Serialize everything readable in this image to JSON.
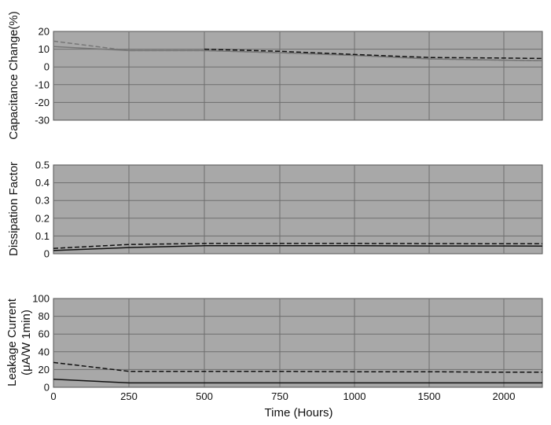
{
  "colors": {
    "plot_bg": "#a8a8a8",
    "grid": "#6e6e6e",
    "frame": "#555555",
    "dark_line": "#111111",
    "gray_line": "#777777"
  },
  "chart_data": [
    {
      "type": "line",
      "ylabel": "Capacitance Change(%)",
      "xlabel": "",
      "ylim": [
        -30,
        20
      ],
      "yticks": [
        20,
        10,
        0,
        -10,
        -20,
        -30
      ],
      "x_categories": [
        "0",
        "250",
        "500",
        "750",
        "1000",
        "1500",
        "2000"
      ],
      "grid": true,
      "series": [
        {
          "style": "dashed",
          "color": "gray_line",
          "points": [
            [
              0,
              14.5
            ],
            [
              250,
              9.2
            ],
            [
              500,
              9.2
            ],
            [
              750,
              8.0
            ],
            [
              1000,
              6.5
            ],
            [
              1500,
              4.5
            ],
            [
              2000,
              3.8
            ],
            [
              2300,
              3.5
            ]
          ]
        },
        {
          "style": "solid",
          "color": "gray_line",
          "points": [
            [
              0,
              11.5
            ],
            [
              250,
              9.2
            ],
            [
              500,
              9.2
            ],
            [
              750,
              8.0
            ],
            [
              1000,
              6.5
            ],
            [
              1500,
              4.5
            ],
            [
              2000,
              3.8
            ],
            [
              2300,
              3.5
            ]
          ]
        },
        {
          "style": "dashed",
          "color": "dark_line",
          "points": [
            [
              500,
              10.0
            ],
            [
              750,
              8.8
            ],
            [
              1000,
              7.0
            ],
            [
              1500,
              5.3
            ],
            [
              2000,
              5.0
            ],
            [
              2300,
              4.8
            ]
          ]
        }
      ]
    },
    {
      "type": "line",
      "ylabel": "Dissipation Factor",
      "xlabel": "",
      "ylim": [
        0,
        0.5
      ],
      "yticks": [
        "0.5",
        "0.4",
        "0.3",
        "0.2",
        "0.1",
        "0"
      ],
      "x_categories": [
        "0",
        "250",
        "500",
        "750",
        "1000",
        "1500",
        "2000"
      ],
      "grid": true,
      "series": [
        {
          "style": "dashed",
          "color": "dark_line",
          "points": [
            [
              0,
              0.03
            ],
            [
              250,
              0.052
            ],
            [
              500,
              0.058
            ],
            [
              750,
              0.058
            ],
            [
              1000,
              0.058
            ],
            [
              1500,
              0.057
            ],
            [
              2000,
              0.056
            ],
            [
              2300,
              0.056
            ]
          ]
        },
        {
          "style": "solid",
          "color": "dark_line",
          "points": [
            [
              0,
              0.018
            ],
            [
              250,
              0.035
            ],
            [
              500,
              0.045
            ],
            [
              750,
              0.045
            ],
            [
              1000,
              0.045
            ],
            [
              1500,
              0.044
            ],
            [
              2000,
              0.044
            ],
            [
              2300,
              0.043
            ]
          ]
        }
      ]
    },
    {
      "type": "line",
      "ylabel": "Leakage Current",
      "ylabel2": "(μA/W 1min)",
      "xlabel": "Time (Hours)",
      "ylim": [
        0,
        100
      ],
      "yticks": [
        100,
        80,
        60,
        40,
        20,
        0
      ],
      "x_categories": [
        "0",
        "250",
        "500",
        "750",
        "1000",
        "1500",
        "2000"
      ],
      "grid": true,
      "series": [
        {
          "style": "dashed",
          "color": "dark_line",
          "points": [
            [
              0,
              28
            ],
            [
              250,
              18
            ],
            [
              500,
              18
            ],
            [
              750,
              18
            ],
            [
              1000,
              17.5
            ],
            [
              1500,
              17.5
            ],
            [
              2000,
              17
            ],
            [
              2300,
              17
            ]
          ]
        },
        {
          "style": "solid",
          "color": "dark_line",
          "points": [
            [
              0,
              9
            ],
            [
              250,
              5
            ],
            [
              500,
              5
            ],
            [
              750,
              5
            ],
            [
              1000,
              5
            ],
            [
              1500,
              5
            ],
            [
              2000,
              5
            ],
            [
              2300,
              5
            ]
          ]
        }
      ]
    }
  ]
}
